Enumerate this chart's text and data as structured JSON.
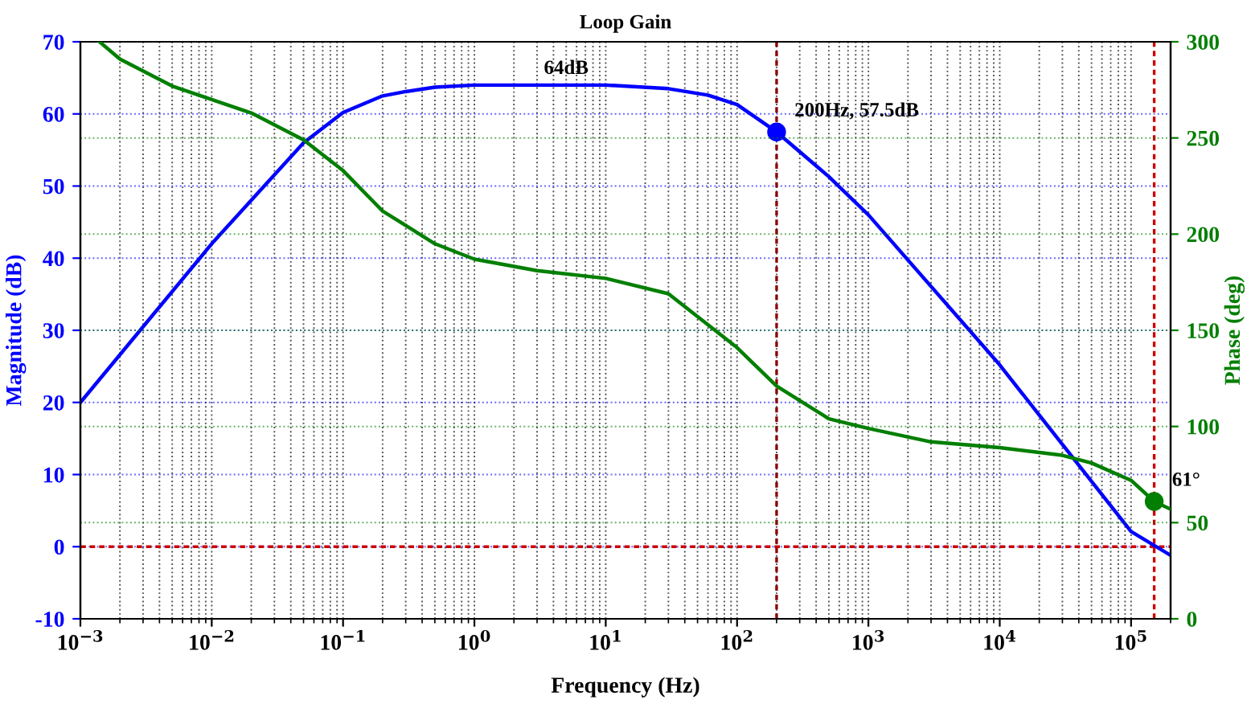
{
  "chart_data": {
    "type": "line",
    "title": "Loop Gain",
    "xlabel": "Frequency (Hz)",
    "ylabel": "Magnitude (dB)",
    "y2label": "Phase (deg)",
    "log": "x",
    "grid": true,
    "line_style": "solid",
    "marker": "none",
    "xlim": [
      0.001,
      200000
    ],
    "xticks": [
      {
        "value": 0.001,
        "label": "10$^{−3}$"
      },
      {
        "value": 0.01,
        "label": "10$^{−2}$"
      },
      {
        "value": 0.1,
        "label": "10$^{−1}$"
      },
      {
        "value": 1,
        "label": "10$^{0}$"
      },
      {
        "value": 10,
        "label": "10$^{1}$"
      },
      {
        "value": 100,
        "label": "10$^{2}$"
      },
      {
        "value": 1000,
        "label": "10$^{3}$"
      },
      {
        "value": 10000,
        "label": "10$^{4}$"
      },
      {
        "value": 100000,
        "label": "10$^{5}$"
      }
    ],
    "ylim": [
      -10,
      70
    ],
    "yticks": [
      -10,
      0,
      10,
      20,
      30,
      40,
      50,
      60,
      70
    ],
    "y2lim": [
      0,
      300
    ],
    "y2ticks": [
      0,
      50,
      100,
      150,
      200,
      250,
      300
    ],
    "series": [
      {
        "color": "#0000ff",
        "x": [
          0.001,
          0.01,
          0.05,
          0.1,
          0.2,
          0.3,
          0.5,
          1,
          10,
          30,
          60,
          100,
          200,
          500,
          1000,
          10000,
          100000,
          200000
        ],
        "values": [
          20,
          42,
          56,
          60.2,
          62.5,
          63.1,
          63.7,
          64,
          64,
          63.5,
          62.6,
          61.3,
          57.5,
          51.3,
          46,
          25.2,
          2.1,
          -1.2
        ]
      },
      {
        "color": "#007f00",
        "axis": "y2",
        "x": [
          0.0014,
          0.002,
          0.005,
          0.01,
          0.02,
          0.05,
          0.1,
          0.2,
          0.5,
          1,
          3,
          10,
          30,
          100,
          200,
          500,
          1000,
          3000,
          10000,
          30000,
          50000,
          100000,
          150000,
          200000
        ],
        "values": [
          300,
          291,
          277,
          270,
          263,
          249,
          233,
          212,
          195,
          187,
          181,
          177,
          169,
          141,
          121,
          104,
          99,
          92,
          89,
          85,
          81,
          72,
          61,
          57
        ]
      },
      {
        "type": "scatter",
        "marker": "circle",
        "color": "#0000ff",
        "x": [
          200
        ],
        "values": [
          57.5
        ],
        "value_labels": [
          "200Hz, 57.5dB"
        ]
      },
      {
        "type": "scatter",
        "marker": "circle",
        "color": "#007f00",
        "axis": "y2",
        "x": [
          150000
        ],
        "values": [
          61
        ],
        "value_labels": [
          "61°"
        ]
      }
    ],
    "ref_lines": [
      {
        "axis": "y",
        "value": 0,
        "color": "#cc0000",
        "line_style": "dashed"
      },
      {
        "axis": "x",
        "value": 200,
        "color": "#8b0000",
        "line_style": "dashed"
      },
      {
        "axis": "x",
        "value": 150000,
        "color": "#cc0000",
        "line_style": "dashed"
      }
    ],
    "annotations": [
      {
        "text": "64dB",
        "x": 5,
        "y": 64
      }
    ]
  }
}
